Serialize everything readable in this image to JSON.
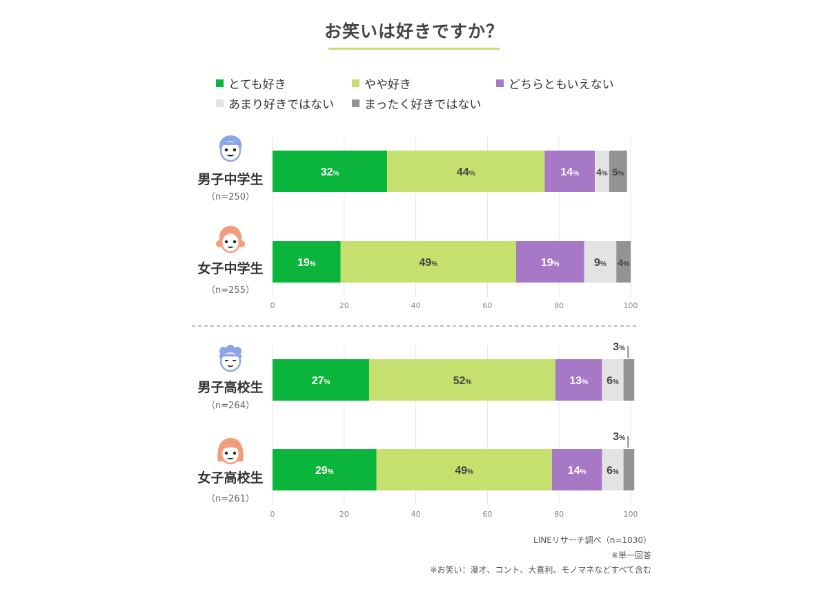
{
  "title": "お笑いは好きですか？",
  "legend": [
    {
      "label": "とても好き",
      "color": "#0bb43a"
    },
    {
      "label": "やや好き",
      "color": "#c5e06e"
    },
    {
      "label": "どちらともいえない",
      "color": "#a678c6"
    },
    {
      "label": "あまり好きではない",
      "color": "#e3e3e3"
    },
    {
      "label": "まったく好きではない",
      "color": "#939393"
    }
  ],
  "groups": [
    {
      "label": "男子中学生",
      "n": "（n=250）",
      "avatar": "boy-short-hair-icon"
    },
    {
      "label": "女子中学生",
      "n": "（n=255）",
      "avatar": "girl-pigtails-icon"
    },
    {
      "label": "男子高校生",
      "n": "（n=264）",
      "avatar": "boy-curly-hair-icon"
    },
    {
      "label": "女子高校生",
      "n": "（n=261）",
      "avatar": "girl-long-hair-icon"
    }
  ],
  "chart_data": {
    "type": "bar",
    "orientation": "horizontal",
    "stacked": true,
    "title": "お笑いは好きですか？",
    "categories": [
      "男子中学生",
      "女子中学生",
      "男子高校生",
      "女子高校生"
    ],
    "series": [
      {
        "name": "とても好き",
        "values": [
          32,
          19,
          27,
          29
        ]
      },
      {
        "name": "やや好き",
        "values": [
          44,
          49,
          52,
          49
        ]
      },
      {
        "name": "どちらともいえない",
        "values": [
          14,
          19,
          13,
          14
        ]
      },
      {
        "name": "あまり好きではない",
        "values": [
          4,
          9,
          6,
          6
        ]
      },
      {
        "name": "まったく好きではない",
        "values": [
          5,
          4,
          3,
          3
        ]
      }
    ],
    "value_suffix": "%",
    "xlim": [
      0,
      100
    ],
    "xticks": [
      "0",
      "20",
      "40",
      "60",
      "80",
      "100"
    ],
    "grid": true,
    "legend_position": "top"
  },
  "footer": {
    "source": "LINEリサーチ調べ（n=1030）",
    "note1": "※単一回答",
    "note2": "※お笑い：漫才、コント、大喜利、モノマネなどすべて含む"
  }
}
